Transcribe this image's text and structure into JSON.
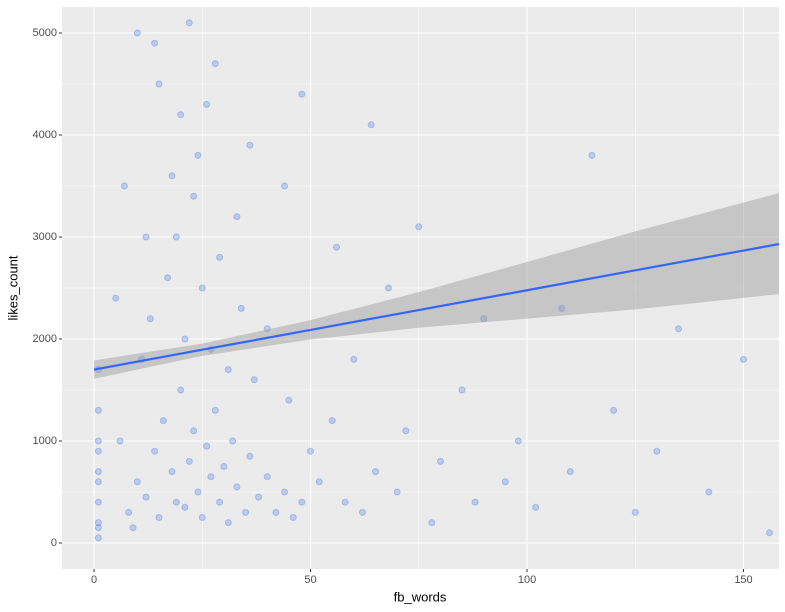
{
  "chart_data": {
    "type": "scatter",
    "x_label": "fb_words",
    "y_label": "likes_count",
    "xlim": [
      -7.4,
      158.2
    ],
    "ylim": [
      -255,
      5255
    ],
    "xticks": [
      0,
      50,
      100,
      150
    ],
    "yticks": [
      0,
      1000,
      2000,
      3000,
      4000,
      5000
    ],
    "minor_xticks": [
      25,
      75,
      125
    ],
    "minor_yticks": [
      500,
      1500,
      2500,
      3500,
      4500
    ],
    "grid": true,
    "color": "#4f82ea",
    "line_color": "#3366ff",
    "band_color": "#999999",
    "x": [
      1,
      1,
      1,
      1,
      1,
      1,
      1,
      1,
      1,
      1,
      8,
      10,
      12,
      14,
      15,
      16,
      18,
      19,
      20,
      21,
      22,
      23,
      24,
      25,
      26,
      27,
      28,
      29,
      30,
      31,
      32,
      33,
      35,
      36,
      38,
      40,
      42,
      44,
      46,
      48,
      11,
      13,
      17,
      19,
      21,
      23,
      25,
      27,
      29,
      31,
      34,
      37,
      20,
      24,
      15,
      28,
      22,
      18,
      33,
      40,
      45,
      50,
      52,
      55,
      58,
      60,
      62,
      65,
      68,
      70,
      72,
      75,
      78,
      80,
      85,
      88,
      90,
      95,
      98,
      102,
      108,
      110,
      115,
      120,
      125,
      130,
      135,
      142,
      150,
      156,
      6,
      9,
      12,
      14,
      26,
      36,
      44,
      48,
      56,
      64,
      5,
      7,
      10
    ],
    "values": [
      50,
      200,
      400,
      700,
      1000,
      1300,
      1700,
      150,
      600,
      900,
      300,
      600,
      450,
      900,
      250,
      1200,
      700,
      400,
      1500,
      350,
      800,
      1100,
      500,
      250,
      950,
      650,
      1300,
      400,
      750,
      200,
      1000,
      550,
      300,
      850,
      450,
      650,
      300,
      500,
      250,
      400,
      1800,
      2200,
      2600,
      3000,
      2000,
      3400,
      2500,
      1900,
      2800,
      1700,
      2300,
      1600,
      4200,
      3800,
      4500,
      4700,
      5100,
      3600,
      3200,
      2100,
      1400,
      900,
      600,
      1200,
      400,
      1800,
      300,
      700,
      2500,
      500,
      1100,
      3100,
      200,
      800,
      1500,
      400,
      2200,
      600,
      1000,
      350,
      2300,
      700,
      3800,
      1300,
      300,
      900,
      2100,
      500,
      1800,
      100,
      1000,
      150,
      3000,
      4900,
      4300,
      3900,
      3500,
      4400,
      2900,
      4100,
      2400,
      3500,
      5000
    ],
    "fit": {
      "x": [
        0,
        25,
        50,
        75,
        100,
        125,
        158.2
      ],
      "y": [
        1700,
        1895,
        2089,
        2284,
        2478,
        2673,
        2931
      ],
      "ymin": [
        1610,
        1835,
        1995,
        2110,
        2200,
        2290,
        2440
      ],
      "ymax": [
        1790,
        1955,
        2185,
        2460,
        2755,
        3055,
        3430
      ]
    }
  }
}
